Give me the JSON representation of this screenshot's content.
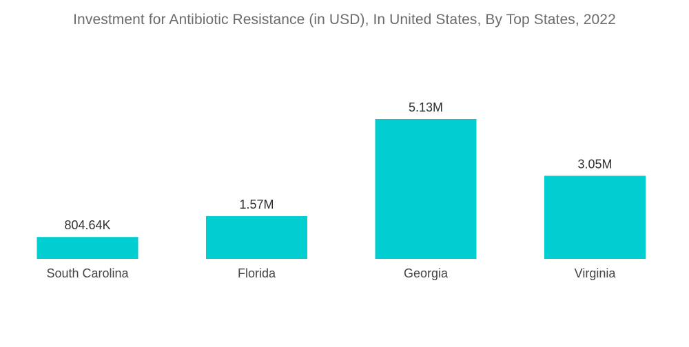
{
  "chart_data": {
    "type": "bar",
    "title": "Investment for Antibiotic Resistance (in USD), In United States, By Top States, 2022",
    "categories": [
      "South Carolina",
      "Florida",
      "Georgia",
      "Virginia"
    ],
    "values": [
      804640,
      1570000,
      5130000,
      3050000
    ],
    "data_labels": [
      "804.64K",
      "1.57M",
      "5.13M",
      "3.05M"
    ],
    "xlabel": "",
    "ylabel": "",
    "ylim": [
      0,
      5130000
    ],
    "grid": false,
    "legend": "none",
    "bar_color": "#00CED1"
  }
}
